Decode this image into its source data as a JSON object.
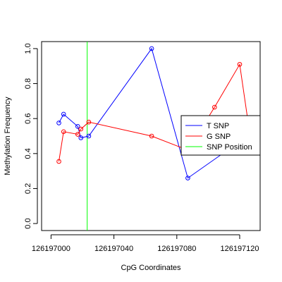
{
  "chart_data": {
    "type": "line",
    "xlabel": "CpG Coordinates",
    "ylabel": "Methylation Frequency",
    "xlim": [
      126196994,
      126197133
    ],
    "ylim": [
      -0.04,
      1.04
    ],
    "x_ticks": [
      126197000,
      126197040,
      126197080,
      126197120
    ],
    "x_tick_labels": [
      "126197000",
      "126197040",
      "126197080",
      "126197120"
    ],
    "y_ticks": [
      0.0,
      0.2,
      0.4,
      0.6,
      0.8,
      1.0
    ],
    "y_tick_labels": [
      "0.0",
      "0.2",
      "0.4",
      "0.6",
      "0.8",
      "1.0"
    ],
    "grid": false,
    "legend_position": "right",
    "series": [
      {
        "name": "T SNP",
        "color": "#0000ff",
        "x": [
          126197005,
          126197008,
          126197017,
          126197019,
          126197024,
          126197064,
          126197087,
          126197125
        ],
        "y": [
          0.575,
          0.625,
          0.555,
          0.49,
          0.5,
          1.0,
          0.26,
          0.5
        ]
      },
      {
        "name": "G SNP",
        "color": "#ff0000",
        "x": [
          126197005,
          126197008,
          126197017,
          126197019,
          126197024,
          126197064,
          126197087,
          126197104,
          126197120,
          126197125
        ],
        "y": [
          0.355,
          0.525,
          0.51,
          0.54,
          0.58,
          0.5,
          0.42,
          0.665,
          0.91,
          0.6
        ]
      }
    ],
    "snp_position": {
      "name": "SNP Position",
      "color": "#00ff00",
      "x": 126197023
    }
  }
}
